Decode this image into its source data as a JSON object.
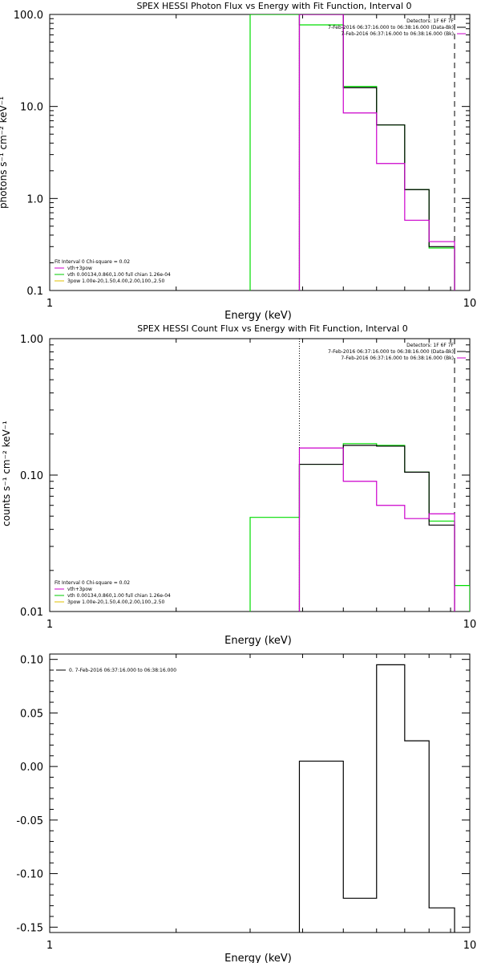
{
  "chart_data": [
    {
      "type": "step-line",
      "title": "SPEX HESSI Photon Flux vs Energy with Fit Function, Interval 0",
      "xlabel": "Energy (keV)",
      "ylabel": "photons s⁻¹ cm⁻² keV⁻¹",
      "xscale": "log",
      "yscale": "log",
      "xlim": [
        1,
        10
      ],
      "ylim": [
        0.1,
        100
      ],
      "xticks": [
        "1",
        "10"
      ],
      "yticks": [
        "0.1",
        "1.0",
        "10.0",
        "100.0"
      ],
      "legend_topright": [
        {
          "text": "Detectors: 1F 6F 7F",
          "color": "#000000"
        },
        {
          "text": "7-Feb-2016 06:37:16.000 to 06:38:16.000 (Data-Bk)",
          "color": "#000000"
        },
        {
          "text": "7-Feb-2016 06:37:16.000 to 06:38:16.000 (Bk)",
          "color": "#cc00cc"
        }
      ],
      "legend_bottomleft": [
        {
          "text": "Fit Interval 0   Chi-square = 0.02",
          "color": "#000000"
        },
        {
          "text": "vth+3pow",
          "color": "#cc00cc"
        },
        {
          "text": "vth 0.00134,0.860,1.00  full chian 1.26e-04",
          "color": "#00cc00"
        },
        {
          "text": "3pow 1.00e-20,1.50,4.00,2.00,100.,2.50",
          "color": "#e0c000"
        }
      ],
      "dashed_vline_x": 9.2,
      "dotted_vline_x": 3.93,
      "series": [
        {
          "color": "#00dd00",
          "edges": [
            3.0,
            3.93,
            5.0,
            6.0,
            7.0,
            8.0,
            9.2
          ],
          "values": [
            100,
            77,
            16.5,
            6.3,
            1.25,
            0.29
          ]
        },
        {
          "color": "#000000",
          "edges": [
            3.93,
            5.0,
            6.0,
            7.0,
            8.0,
            9.2
          ],
          "values": [
            100,
            16,
            6.3,
            1.25,
            0.3
          ]
        },
        {
          "color": "#cc00cc",
          "edges": [
            3.93,
            5.0,
            6.0,
            7.0,
            8.0,
            9.2
          ],
          "values": [
            100,
            8.5,
            2.4,
            0.58,
            0.34
          ]
        }
      ]
    },
    {
      "type": "step-line",
      "title": "SPEX HESSI Count Flux vs Energy with Fit Function, Interval 0",
      "xlabel": "Energy (keV)",
      "ylabel": "counts s⁻¹ cm⁻² keV⁻¹",
      "xscale": "log",
      "yscale": "log",
      "xlim": [
        1,
        10
      ],
      "ylim": [
        0.01,
        1
      ],
      "xticks": [
        "1",
        "10"
      ],
      "yticks": [
        "0.01",
        "0.10",
        "1.00"
      ],
      "legend_topright": [
        {
          "text": "Detectors: 1F 6F 7F",
          "color": "#000000"
        },
        {
          "text": "7-Feb-2016 06:37:16.000 to 06:38:16.000 (Data-Bk)",
          "color": "#000000"
        },
        {
          "text": "7-Feb-2016 06:37:16.000 to 06:38:16.000 (Bk)",
          "color": "#cc00cc"
        }
      ],
      "legend_bottomleft": [
        {
          "text": "Fit Interval 0   Chi-square = 0.02",
          "color": "#000000"
        },
        {
          "text": "vth+3pow",
          "color": "#cc00cc"
        },
        {
          "text": "vth 0.00134,0.860,1.00  full chian 1.26e-04",
          "color": "#00cc00"
        },
        {
          "text": "3pow 1.00e-20,1.50,4.00,2.00,100.,2.50",
          "color": "#e0c000"
        }
      ],
      "dashed_vline_x": 9.2,
      "dotted_vline_x": 3.93,
      "series": [
        {
          "color": "#00dd00",
          "edges": [
            3.0,
            3.93,
            5.0,
            6.0,
            7.0,
            8.0,
            9.2,
            10.0
          ],
          "values": [
            0.049,
            0.12,
            0.17,
            0.165,
            0.105,
            0.046,
            0.0155
          ]
        },
        {
          "color": "#000000",
          "edges": [
            3.93,
            5.0,
            6.0,
            7.0,
            8.0,
            9.2
          ],
          "values": [
            0.12,
            0.165,
            0.163,
            0.105,
            0.043
          ]
        },
        {
          "color": "#cc00cc",
          "edges": [
            3.93,
            5.0,
            6.0,
            7.0,
            8.0,
            9.2
          ],
          "values": [
            0.158,
            0.09,
            0.06,
            0.048,
            0.052
          ]
        }
      ]
    },
    {
      "type": "step-line",
      "title": "",
      "xlabel": "Energy (keV)",
      "ylabel": "",
      "xscale": "log",
      "yscale": "linear",
      "xlim": [
        1,
        10
      ],
      "ylim": [
        -0.155,
        0.105
      ],
      "xticks": [
        "1",
        "10"
      ],
      "yticks": [
        "-0.15",
        "-0.10",
        "-0.05",
        "0.00",
        "0.05",
        "0.10"
      ],
      "legend_topleft": [
        {
          "text": "0.  7-Feb-2016 06:37:16.000 to 06:38:16.000",
          "color": "#000000"
        }
      ],
      "series": [
        {
          "color": "#000000",
          "edges": [
            3.93,
            5.0,
            6.0,
            7.0,
            8.0,
            9.2
          ],
          "values": [
            0.005,
            -0.123,
            0.095,
            0.024,
            -0.132
          ]
        }
      ]
    }
  ]
}
